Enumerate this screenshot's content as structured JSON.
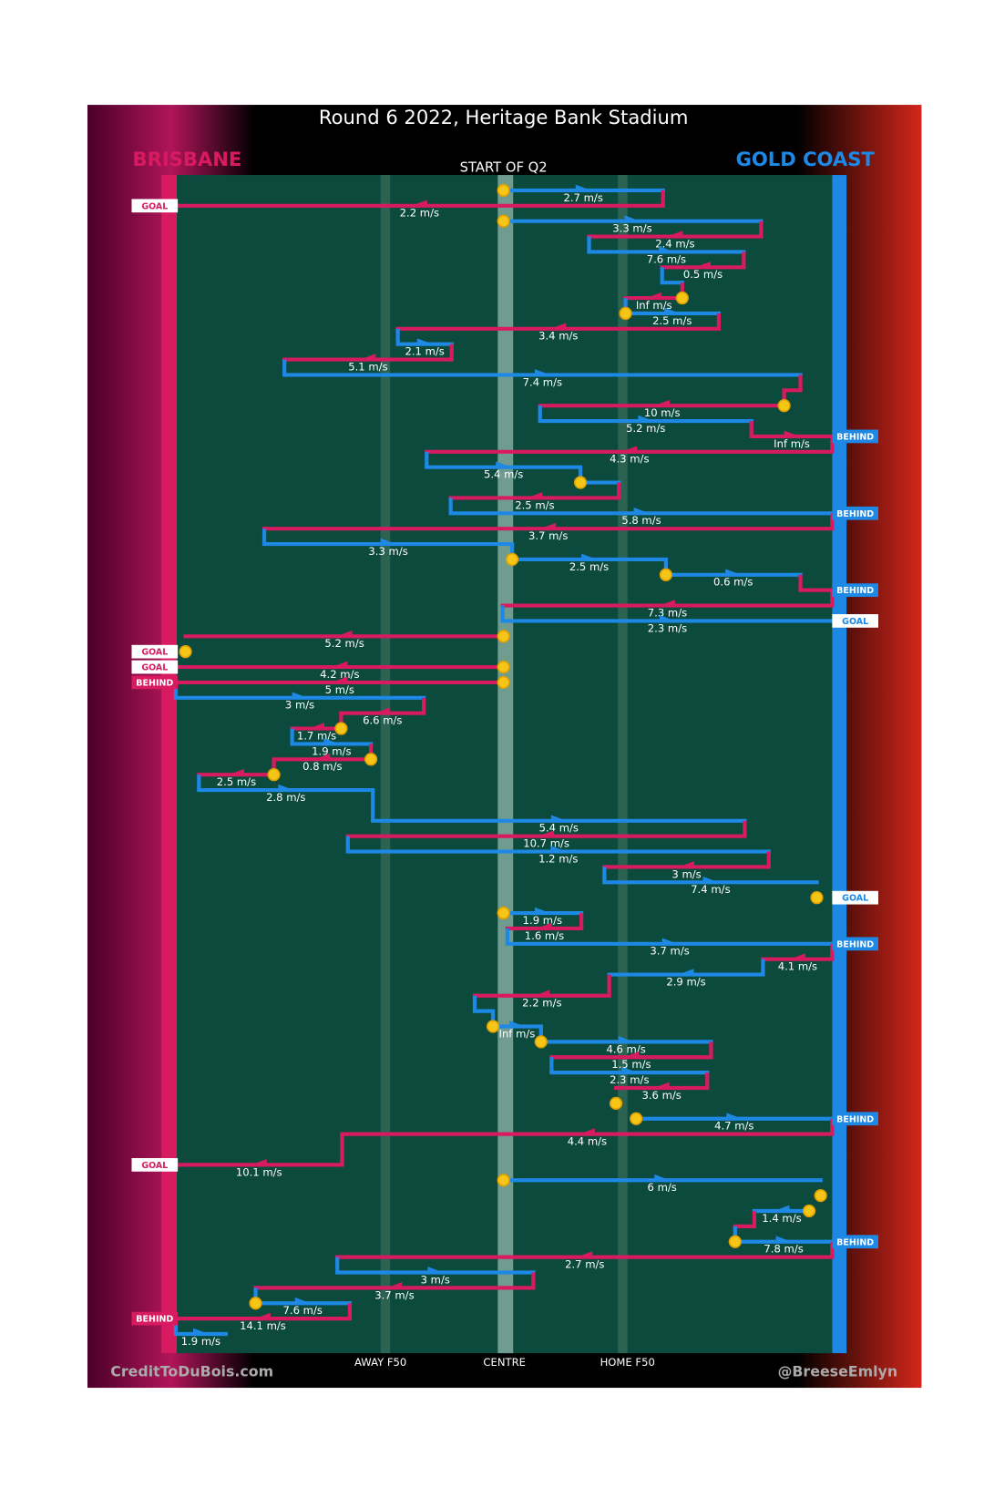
{
  "title": "Round 6 2022, Heritage Bank Stadium",
  "teams": {
    "left": "BRISBANE",
    "right": "GOLD COAST"
  },
  "quarter": "START OF Q2",
  "zones": [
    "AWAY F50",
    "CENTRE",
    "HOME F50"
  ],
  "credits": [
    "CreditToDuBois.com",
    "@BreeseEmlyn"
  ],
  "speeds": [
    "2.7 m/s",
    "2.2 m/s",
    "3.3 m/s",
    "2.4 m/s",
    "7.6 m/s",
    "0.5 m/s",
    "Inf m/s",
    "2.5 m/s",
    "3.4 m/s",
    "2.1 m/s",
    "5.1 m/s",
    "7.4 m/s",
    "10 m/s",
    "5.2 m/s",
    "Inf m/s",
    "4.3 m/s",
    "5.4 m/s",
    "2.5 m/s",
    "5.8 m/s",
    "3.7 m/s",
    "3.3 m/s",
    "2.5 m/s",
    "0.6 m/s",
    "7.3 m/s",
    "2.3 m/s",
    "5.2 m/s",
    "4.2 m/s",
    "5 m/s",
    "3 m/s",
    "6.6 m/s",
    "1.7 m/s",
    "1.9 m/s",
    "0.8 m/s",
    "2.5 m/s",
    "2.8 m/s",
    "5.4 m/s",
    "10.7 m/s",
    "1.2 m/s",
    "3 m/s",
    "7.4 m/s",
    "1.9 m/s",
    "1.6 m/s",
    "3.7 m/s",
    "4.1 m/s",
    "2.9 m/s",
    "2.2 m/s",
    "Inf m/s",
    "4.6 m/s",
    "1.5 m/s",
    "2.3 m/s",
    "3.6 m/s",
    "4.7 m/s",
    "4.4 m/s",
    "10.1 m/s",
    "6 m/s",
    "1.4 m/s",
    "7.8 m/s",
    "2.7 m/s",
    "3 m/s",
    "3.7 m/s",
    "7.6 m/s",
    "14.1 m/s",
    "1.9 m/s"
  ],
  "outcomes": [
    "GOAL",
    "BEHIND",
    "BEHIND",
    "BEHIND",
    "GOAL",
    "GOAL",
    "GOAL",
    "BEHIND",
    "GOAL",
    "BEHIND",
    "BEHIND",
    "GOAL",
    "BEHIND",
    "BEHIND"
  ]
}
